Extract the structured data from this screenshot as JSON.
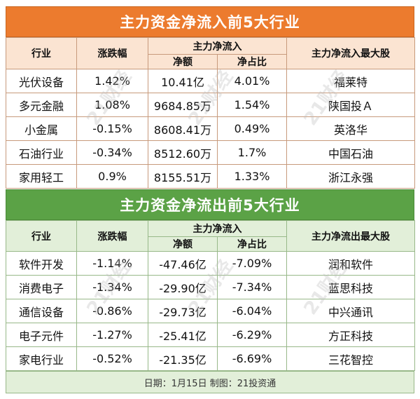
{
  "inflow": {
    "title": "主力资金净流入前5大行业",
    "headers": {
      "industry": "行业",
      "change": "涨跌幅",
      "main_net": "主力净流入",
      "amount": "净额",
      "ratio": "净占比",
      "top_stock": "主力净流入最大股"
    },
    "rows": [
      {
        "industry": "光伏设备",
        "change": "1.42%",
        "amount": "10.41亿",
        "ratio": "4.01%",
        "top_stock": "福莱特"
      },
      {
        "industry": "多元金融",
        "change": "1.08%",
        "amount": "9684.85万",
        "ratio": "1.54%",
        "top_stock": "陕国投Ａ"
      },
      {
        "industry": "小金属",
        "change": "-0.15%",
        "amount": "8608.41万",
        "ratio": "0.49%",
        "top_stock": "英洛华"
      },
      {
        "industry": "石油行业",
        "change": "-0.34%",
        "amount": "8512.60万",
        "ratio": "1.7%",
        "top_stock": "中国石油"
      },
      {
        "industry": "家用轻工",
        "change": "0.9%",
        "amount": "8155.51万",
        "ratio": "1.33%",
        "top_stock": "浙江永强"
      }
    ]
  },
  "outflow": {
    "title": "主力资金净流出前5大行业",
    "headers": {
      "industry": "行业",
      "change": "涨跌幅",
      "main_net": "主力净流入",
      "amount": "净额",
      "ratio": "净占比",
      "top_stock": "主力净流出最大股"
    },
    "rows": [
      {
        "industry": "软件开发",
        "change": "-1.14%",
        "amount": "-47.46亿",
        "ratio": "-7.09%",
        "top_stock": "润和软件"
      },
      {
        "industry": "消费电子",
        "change": "-1.34%",
        "amount": "-29.90亿",
        "ratio": "-7.34%",
        "top_stock": "蓝思科技"
      },
      {
        "industry": "通信设备",
        "change": "-0.86%",
        "amount": "-29.73亿",
        "ratio": "-6.04%",
        "top_stock": "中兴通讯"
      },
      {
        "industry": "电子元件",
        "change": "-1.27%",
        "amount": "-25.41亿",
        "ratio": "-6.29%",
        "top_stock": "方正科技"
      },
      {
        "industry": "家电行业",
        "change": "-0.52%",
        "amount": "-21.35亿",
        "ratio": "-6.69%",
        "top_stock": "三花智控"
      }
    ]
  },
  "footer": "日期：1月15日 制图：21投资通",
  "watermark": "21财经",
  "colors": {
    "inflow_title_bg": "#ec7b2e",
    "outflow_title_bg": "#5ba246",
    "inflow_header_bg": "#fbe4d2",
    "outflow_header_bg": "#e2efd9"
  }
}
